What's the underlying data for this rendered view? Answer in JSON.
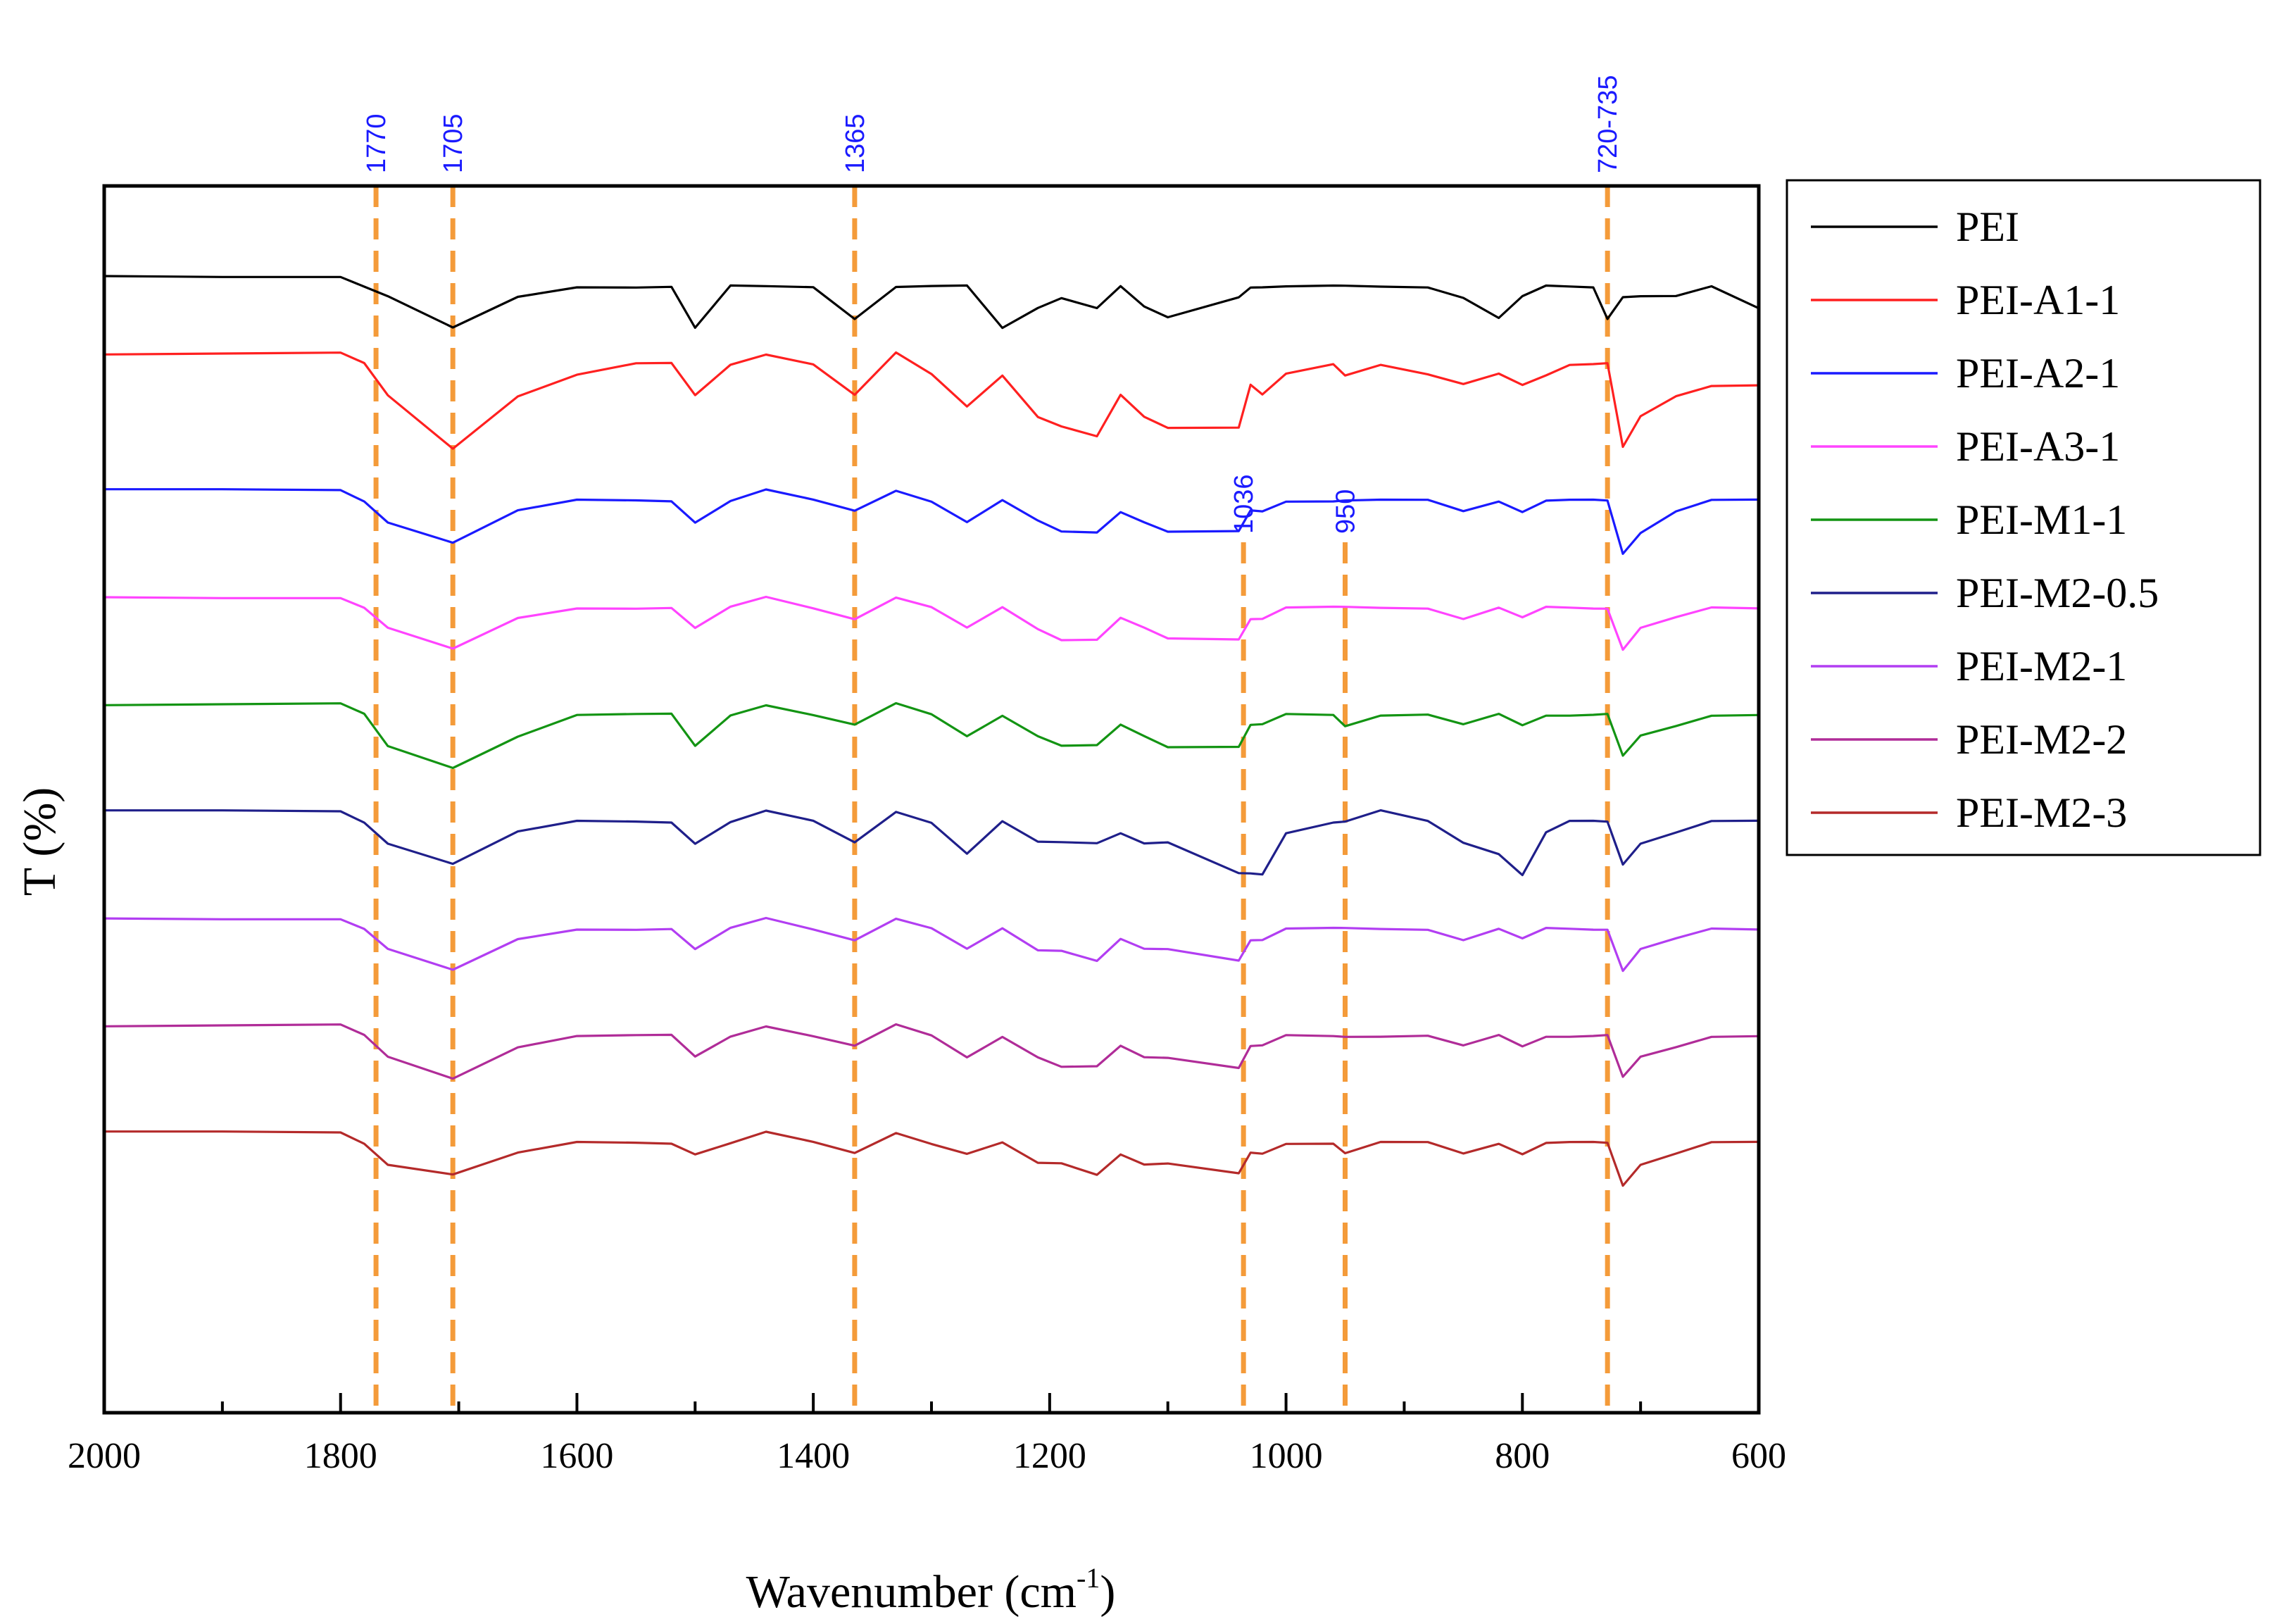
{
  "chart_data": {
    "type": "line",
    "title": "",
    "xlabel": "Wavenumber (cm",
    "xlabel_sup": "-1",
    "xlabel_close": ")",
    "ylabel": "T (%)",
    "xlim": [
      2000,
      600
    ],
    "x_ticks": [
      "2000",
      "1800",
      "1600",
      "1400",
      "1200",
      "1000",
      "800",
      "600"
    ],
    "y_ticks_shown": false,
    "legend_position": "outside-right-top",
    "annotations": [
      {
        "label": "1770",
        "x": 1770,
        "color": "#f49b3a",
        "label_color": "#1a1aff",
        "label_row": "top"
      },
      {
        "label": "1705",
        "x": 1705,
        "color": "#f49b3a",
        "label_color": "#1a1aff",
        "label_row": "top"
      },
      {
        "label": "1365",
        "x": 1365,
        "color": "#f49b3a",
        "label_color": "#1a1aff",
        "label_row": "top"
      },
      {
        "label": "720-735",
        "x": 728,
        "color": "#f49b3a",
        "label_color": "#1a1aff",
        "label_row": "top"
      },
      {
        "label": "1036",
        "x": 1036,
        "color": "#f49b3a",
        "label_color": "#1a1aff",
        "label_row": "mid"
      },
      {
        "label": "950",
        "x": 950,
        "color": "#f49b3a",
        "label_color": "#1a1aff",
        "label_row": "mid"
      }
    ],
    "x": [
      2000,
      1900,
      1800,
      1780,
      1760,
      1705,
      1650,
      1600,
      1550,
      1520,
      1500,
      1470,
      1440,
      1400,
      1365,
      1330,
      1300,
      1270,
      1240,
      1210,
      1190,
      1160,
      1140,
      1120,
      1100,
      1040,
      1030,
      1020,
      1000,
      960,
      950,
      920,
      880,
      850,
      820,
      800,
      780,
      760,
      740,
      728,
      715,
      700,
      670,
      640,
      600
    ],
    "series": [
      {
        "name": "PEI",
        "color": "#000000",
        "offset": 0,
        "values": [
          0,
          0,
          0,
          -1,
          -2,
          -5,
          -2,
          -1,
          -1,
          -1,
          -5,
          -1,
          -1,
          -1,
          -4,
          -1,
          -1,
          -1,
          -5,
          -3,
          -2,
          -3,
          -1,
          -3,
          -4,
          -2,
          -1,
          -1,
          -1,
          -1,
          -1,
          -1,
          -1,
          -2,
          -4,
          -2,
          -1,
          -1,
          -1,
          -4,
          -2,
          -2,
          -2,
          -1,
          -3
        ]
      },
      {
        "name": "PEI-A1-1",
        "color": "#ff2020",
        "offset": 1,
        "values": [
          0,
          0,
          0,
          -1,
          -4,
          -9,
          -4,
          -2,
          -1,
          -1,
          -4,
          -1,
          0,
          -1,
          -4,
          0,
          -2,
          -5,
          -2,
          -6,
          -7,
          -8,
          -4,
          -6,
          -7,
          -7,
          -3,
          -4,
          -2,
          -1,
          -2,
          -1,
          -2,
          -3,
          -2,
          -3,
          -2,
          -1,
          -1,
          -1,
          -9,
          -6,
          -4,
          -3,
          -3
        ]
      },
      {
        "name": "PEI-A2-1",
        "color": "#1a1aff",
        "offset": 2,
        "values": [
          0,
          0,
          0,
          -1,
          -3,
          -5,
          -2,
          -1,
          -1,
          -1,
          -3,
          -1,
          0,
          -1,
          -2,
          0,
          -1,
          -3,
          -1,
          -3,
          -4,
          -4,
          -2,
          -3,
          -4,
          -4,
          -2,
          -2,
          -1,
          -1,
          -1,
          -1,
          -1,
          -2,
          -1,
          -2,
          -1,
          -1,
          -1,
          -1,
          -6,
          -4,
          -2,
          -1,
          -1
        ]
      },
      {
        "name": "PEI-A3-1",
        "color": "#ff44ff",
        "offset": 3,
        "values": [
          0,
          0,
          0,
          -1,
          -3,
          -5,
          -2,
          -1,
          -1,
          -1,
          -3,
          -1,
          0,
          -1,
          -2,
          0,
          -1,
          -3,
          -1,
          -3,
          -4,
          -4,
          -2,
          -3,
          -4,
          -4,
          -2,
          -2,
          -1,
          -1,
          -1,
          -1,
          -1,
          -2,
          -1,
          -2,
          -1,
          -1,
          -1,
          -1,
          -5,
          -3,
          -2,
          -1,
          -1
        ]
      },
      {
        "name": "PEI-M1-1",
        "color": "#139413",
        "offset": 4,
        "values": [
          0,
          0,
          0,
          -1,
          -4,
          -6,
          -3,
          -1,
          -1,
          -1,
          -4,
          -1,
          0,
          -1,
          -2,
          0,
          -1,
          -3,
          -1,
          -3,
          -4,
          -4,
          -2,
          -3,
          -4,
          -4,
          -2,
          -2,
          -1,
          -1,
          -2,
          -1,
          -1,
          -2,
          -1,
          -2,
          -1,
          -1,
          -1,
          -1,
          -5,
          -3,
          -2,
          -1,
          -1
        ]
      },
      {
        "name": "PEI-M2-0.5",
        "color": "#1f1f8a",
        "offset": 5,
        "values": [
          0,
          0,
          0,
          -1,
          -3,
          -5,
          -2,
          -1,
          -1,
          -1,
          -3,
          -1,
          0,
          -1,
          -3,
          0,
          -1,
          -4,
          -1,
          -3,
          -3,
          -3,
          -2,
          -3,
          -3,
          -6,
          -6,
          -6,
          -2,
          -1,
          -1,
          0,
          -1,
          -3,
          -4,
          -6,
          -2,
          -1,
          -1,
          -1,
          -5,
          -3,
          -2,
          -1,
          -1
        ]
      },
      {
        "name": "PEI-M2-1",
        "color": "#b23ef2",
        "offset": 6,
        "values": [
          0,
          0,
          0,
          -1,
          -3,
          -5,
          -2,
          -1,
          -1,
          -1,
          -3,
          -1,
          0,
          -1,
          -2,
          0,
          -1,
          -3,
          -1,
          -3,
          -3,
          -4,
          -2,
          -3,
          -3,
          -4,
          -2,
          -2,
          -1,
          -1,
          -1,
          -1,
          -1,
          -2,
          -1,
          -2,
          -1,
          -1,
          -1,
          -1,
          -5,
          -3,
          -2,
          -1,
          -1
        ]
      },
      {
        "name": "PEI-M2-2",
        "color": "#b02c98",
        "offset": 7,
        "values": [
          0,
          0,
          0,
          -1,
          -3,
          -5,
          -2,
          -1,
          -1,
          -1,
          -3,
          -1,
          0,
          -1,
          -2,
          0,
          -1,
          -3,
          -1,
          -3,
          -4,
          -4,
          -2,
          -3,
          -3,
          -4,
          -2,
          -2,
          -1,
          -1,
          -1,
          -1,
          -1,
          -2,
          -1,
          -2,
          -1,
          -1,
          -1,
          -1,
          -5,
          -3,
          -2,
          -1,
          -1
        ]
      },
      {
        "name": "PEI-M2-3",
        "color": "#b42a2a",
        "offset": 8,
        "values": [
          0,
          0,
          0,
          -1,
          -3,
          -4,
          -2,
          -1,
          -1,
          -1,
          -2,
          -1,
          0,
          -1,
          -2,
          0,
          -1,
          -2,
          -1,
          -3,
          -3,
          -4,
          -2,
          -3,
          -3,
          -4,
          -2,
          -2,
          -1,
          -1,
          -2,
          -1,
          -1,
          -2,
          -1,
          -2,
          -1,
          -1,
          -1,
          -1,
          -5,
          -3,
          -2,
          -1,
          -1
        ]
      }
    ]
  }
}
